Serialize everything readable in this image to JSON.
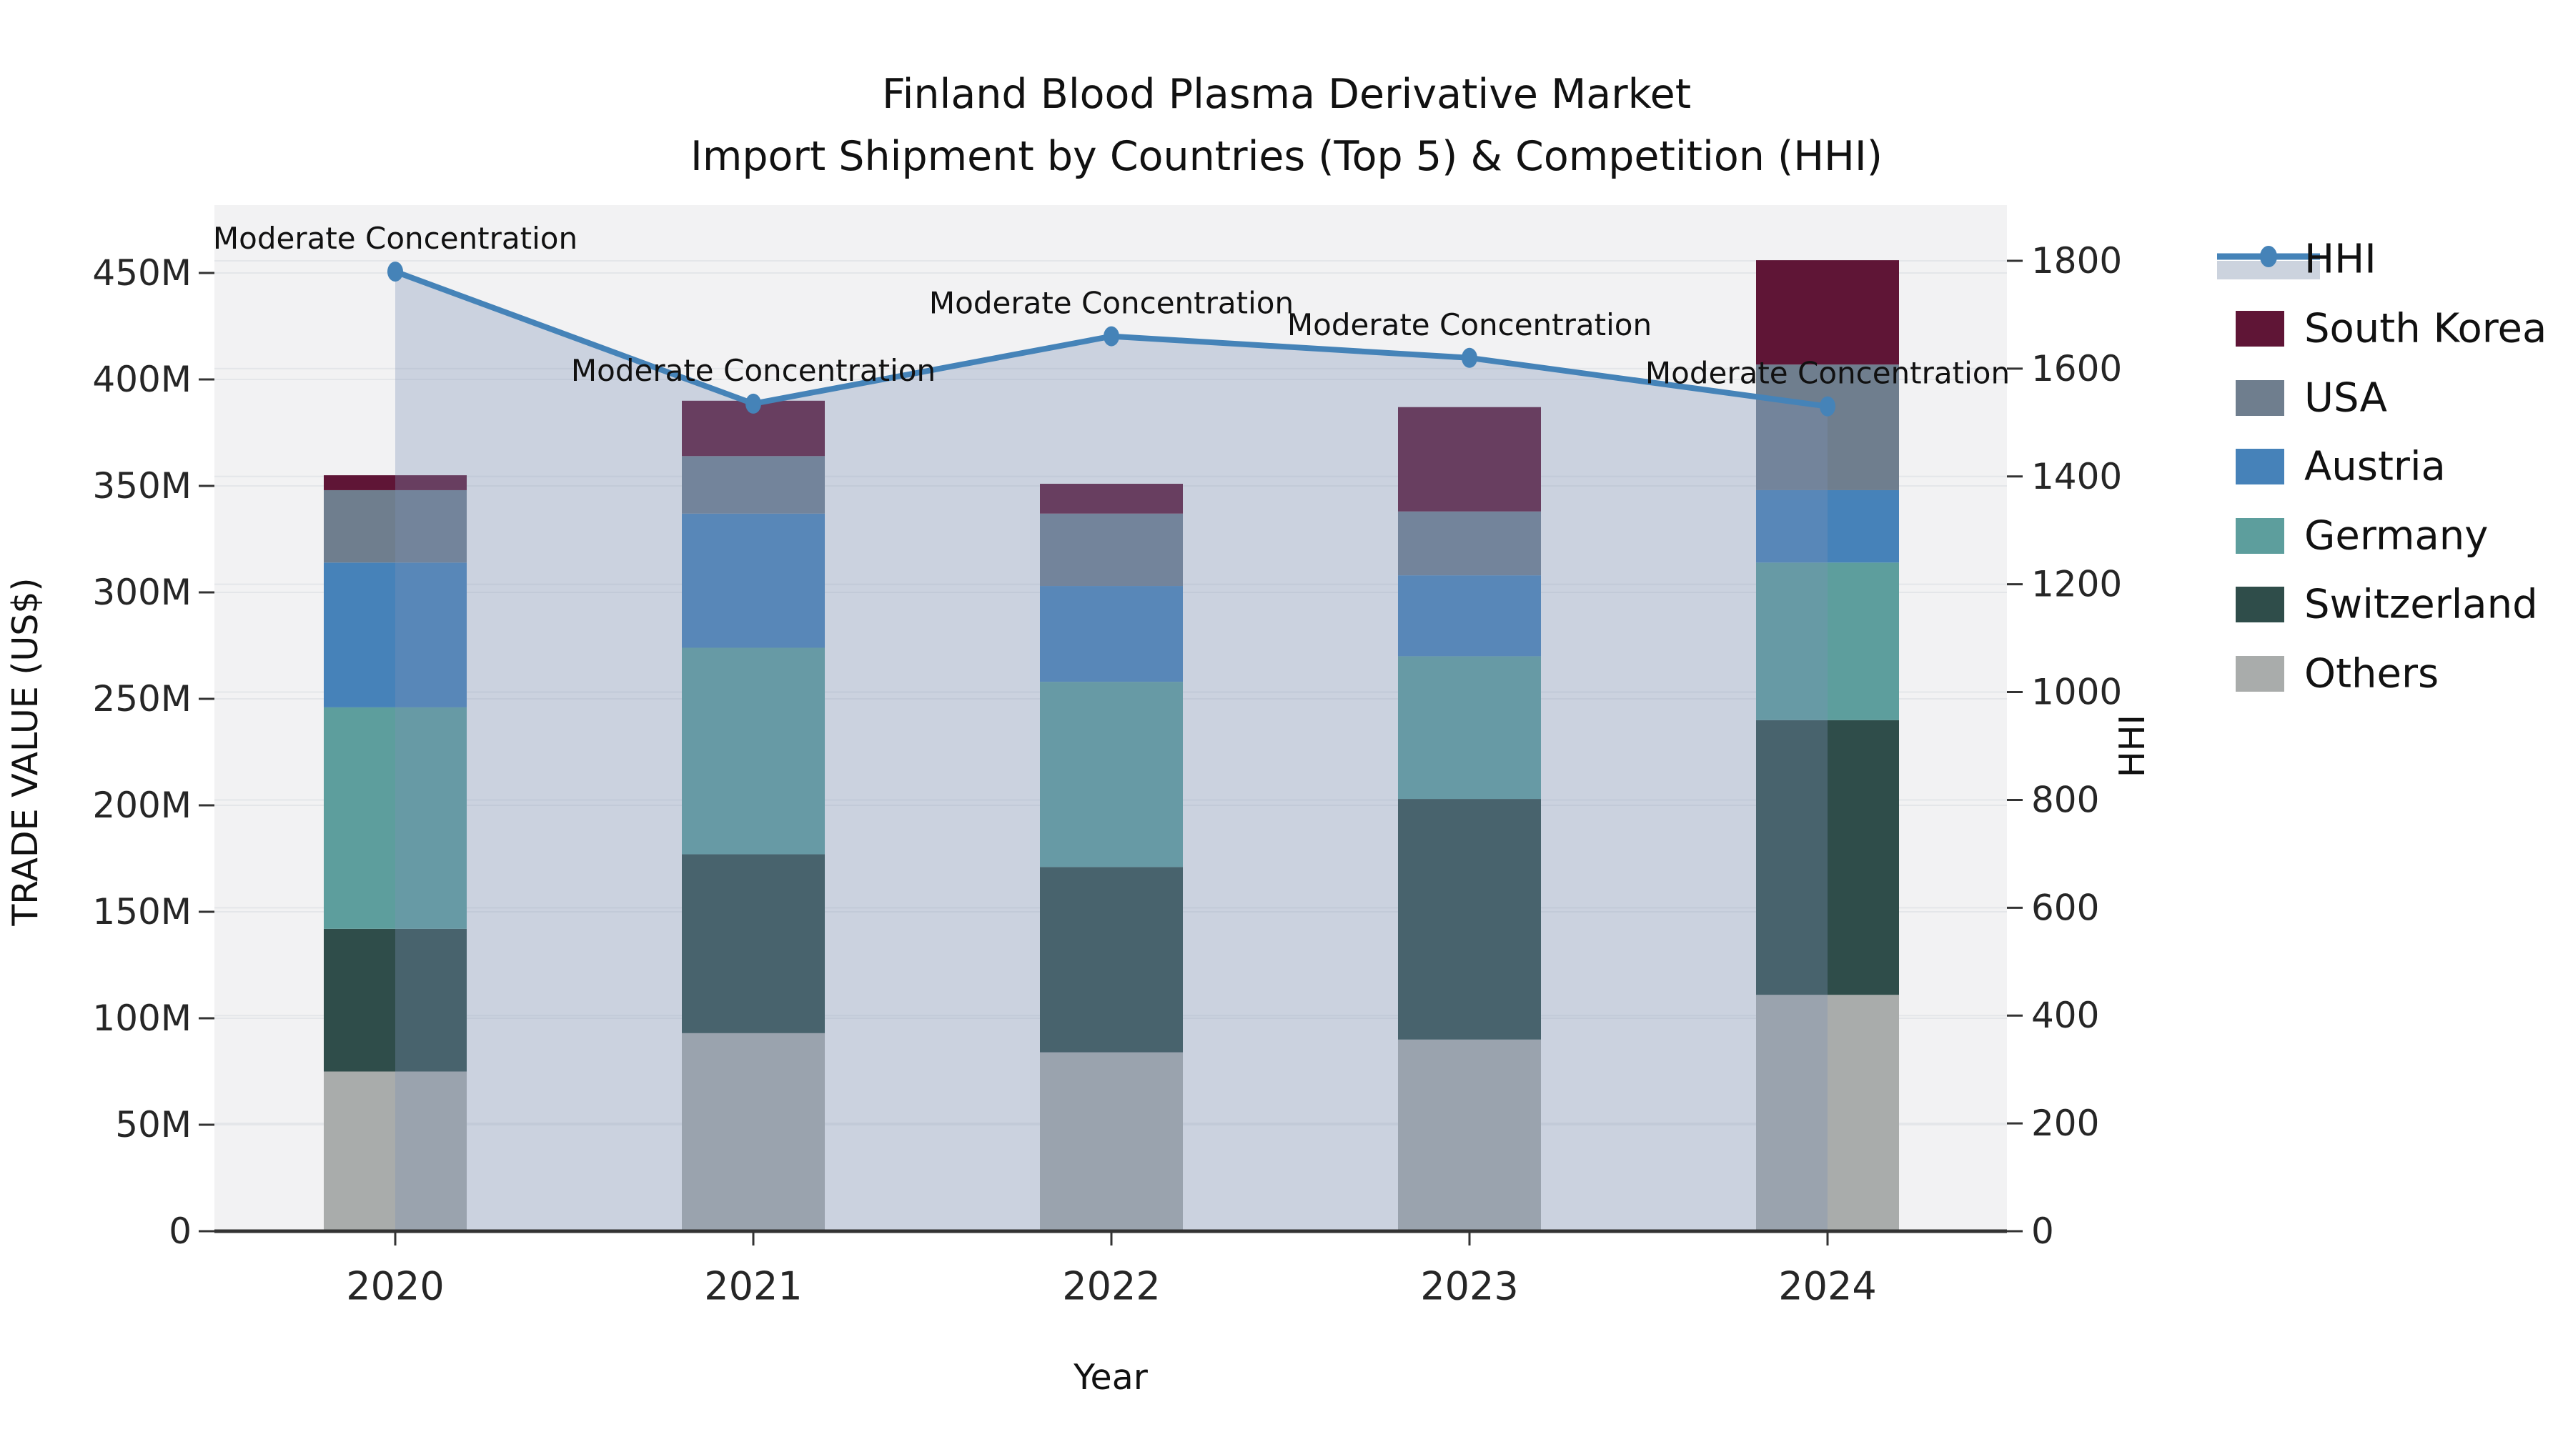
{
  "title": {
    "line1": "Finland Blood Plasma Derivative Market",
    "line2": "Import Shipment by Countries (Top 5) & Competition (HHI)"
  },
  "axis": {
    "y_left": {
      "label": "TRADE VALUE (US$)",
      "tick_labels": [
        "0",
        "50M",
        "100M",
        "150M",
        "200M",
        "250M",
        "300M",
        "350M",
        "400M",
        "450M"
      ],
      "tick_values": [
        0,
        50,
        100,
        150,
        200,
        250,
        300,
        350,
        400,
        450
      ],
      "max": 450
    },
    "y_right": {
      "label": "HHI",
      "tick_labels": [
        "0",
        "200",
        "400",
        "600",
        "800",
        "1000",
        "1200",
        "1400",
        "1600",
        "1800"
      ],
      "tick_values": [
        0,
        200,
        400,
        600,
        800,
        1000,
        1200,
        1400,
        1600,
        1800
      ],
      "max": 1800
    },
    "x": {
      "label": "Year",
      "categories": [
        "2020",
        "2021",
        "2022",
        "2023",
        "2024"
      ]
    }
  },
  "legend": {
    "items": [
      {
        "label": "HHI",
        "type": "line",
        "color": "#4583b8",
        "band": "#ccd3de"
      },
      {
        "label": "South Korea",
        "type": "swatch",
        "color": "#5f1536"
      },
      {
        "label": "USA",
        "type": "swatch",
        "color": "#6f7e8e"
      },
      {
        "label": "Austria",
        "type": "swatch",
        "color": "#4682b9"
      },
      {
        "label": "Germany",
        "type": "swatch",
        "color": "#5d9e9d"
      },
      {
        "label": "Switzerland",
        "type": "swatch",
        "color": "#2f4d4a"
      },
      {
        "label": "Others",
        "type": "swatch",
        "color": "#a9acab"
      }
    ]
  },
  "chart_data": {
    "type": "bar",
    "subtype": "stacked-bars-with-line",
    "title": "Finland Blood Plasma Derivative Market — Import Shipment by Countries (Top 5) & Competition (HHI)",
    "xlabel": "Year",
    "ylabel": "TRADE VALUE (US$)",
    "y2label": "HHI",
    "categories": [
      "2020",
      "2021",
      "2022",
      "2023",
      "2024"
    ],
    "unit": "million US$",
    "ylim": [
      0,
      450
    ],
    "y2lim": [
      0,
      1800
    ],
    "grid": true,
    "legend_position": "right",
    "stack_order_bottom_to_top": [
      "Others",
      "Switzerland",
      "Germany",
      "Austria",
      "USA",
      "South Korea"
    ],
    "series": [
      {
        "name": "Others",
        "color": "#a9acab",
        "values": [
          75,
          93,
          84,
          90,
          111
        ]
      },
      {
        "name": "Switzerland",
        "color": "#2f4d4a",
        "values": [
          67,
          84,
          87,
          113,
          129
        ]
      },
      {
        "name": "Germany",
        "color": "#5d9e9d",
        "values": [
          104,
          97,
          87,
          67,
          74
        ]
      },
      {
        "name": "Austria",
        "color": "#4682b9",
        "values": [
          68,
          63,
          45,
          38,
          34
        ]
      },
      {
        "name": "USA",
        "color": "#6f7e8e",
        "values": [
          34,
          27,
          34,
          30,
          59
        ]
      },
      {
        "name": "South Korea",
        "color": "#5f1536",
        "values": [
          7,
          26,
          14,
          49,
          49
        ]
      }
    ],
    "bar_totals": [
      355,
      390,
      351,
      387,
      456
    ],
    "line_series": {
      "name": "HHI",
      "color": "#4583b8",
      "area_fill": "rgba(124,145,181,0.33)",
      "values": [
        1780,
        1535,
        1660,
        1620,
        1530
      ],
      "axis": "right"
    },
    "annotations": [
      {
        "text": "Moderate Concentration",
        "x": "2020",
        "hhi": 1780
      },
      {
        "text": "Moderate Concentration",
        "x": "2021",
        "hhi": 1535
      },
      {
        "text": "Moderate Concentration",
        "x": "2022",
        "hhi": 1660
      },
      {
        "text": "Moderate Concentration",
        "x": "2023",
        "hhi": 1620
      },
      {
        "text": "Moderate Concentration",
        "x": "2024",
        "hhi": 1530
      }
    ]
  }
}
